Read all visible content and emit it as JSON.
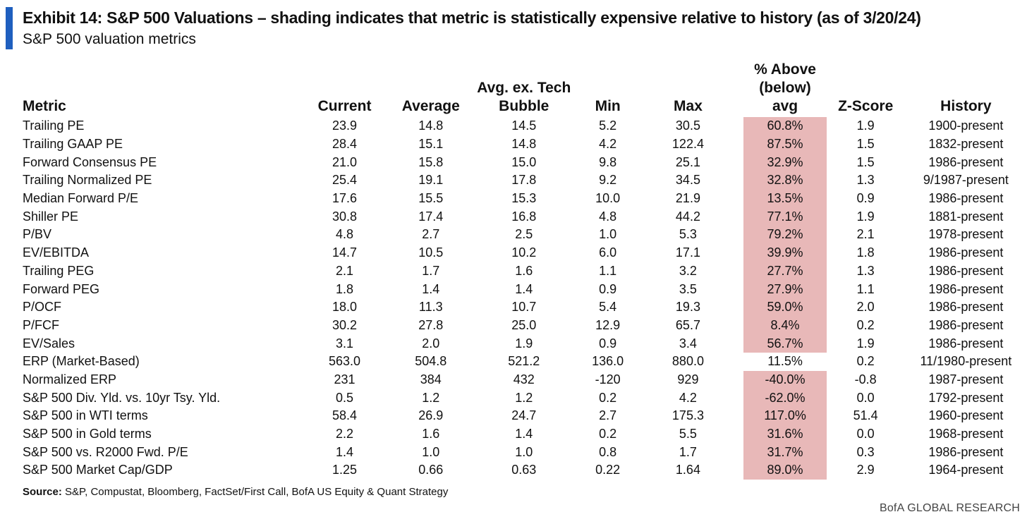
{
  "title": "Exhibit 14: S&P 500 Valuations – shading indicates that metric is statistically expensive relative to history (as of 3/20/24)",
  "subtitle": "S&P 500 valuation metrics",
  "accent_color": "#1f5fbf",
  "shade_color": "#e8b8b8",
  "headers": {
    "metric": "Metric",
    "current": "Current",
    "average": "Average",
    "avg_ex_tech_1": "Avg. ex. Tech",
    "avg_ex_tech_2": "Bubble",
    "min": "Min",
    "max": "Max",
    "pct_1": "% Above",
    "pct_2": "(below)",
    "pct_3": "avg",
    "zscore": "Z-Score",
    "history": "History"
  },
  "rows": [
    {
      "metric": "Trailing PE",
      "current": "23.9",
      "average": "14.8",
      "avg_ex_tech": "14.5",
      "min": "5.2",
      "max": "30.5",
      "pct": "60.8%",
      "z": "1.9",
      "history": "1900-present",
      "shaded": true
    },
    {
      "metric": "Trailing GAAP PE",
      "current": "28.4",
      "average": "15.1",
      "avg_ex_tech": "14.8",
      "min": "4.2",
      "max": "122.4",
      "pct": "87.5%",
      "z": "1.5",
      "history": "1832-present",
      "shaded": true
    },
    {
      "metric": "Forward Consensus PE",
      "current": "21.0",
      "average": "15.8",
      "avg_ex_tech": "15.0",
      "min": "9.8",
      "max": "25.1",
      "pct": "32.9%",
      "z": "1.5",
      "history": "1986-present",
      "shaded": true
    },
    {
      "metric": "Trailing Normalized PE",
      "current": "25.4",
      "average": "19.1",
      "avg_ex_tech": "17.8",
      "min": "9.2",
      "max": "34.5",
      "pct": "32.8%",
      "z": "1.3",
      "history": "9/1987-present",
      "shaded": true
    },
    {
      "metric": "Median Forward P/E",
      "current": "17.6",
      "average": "15.5",
      "avg_ex_tech": "15.3",
      "min": "10.0",
      "max": "21.9",
      "pct": "13.5%",
      "z": "0.9",
      "history": "1986-present",
      "shaded": true
    },
    {
      "metric": "Shiller PE",
      "current": "30.8",
      "average": "17.4",
      "avg_ex_tech": "16.8",
      "min": "4.8",
      "max": "44.2",
      "pct": "77.1%",
      "z": "1.9",
      "history": "1881-present",
      "shaded": true
    },
    {
      "metric": "P/BV",
      "current": "4.8",
      "average": "2.7",
      "avg_ex_tech": "2.5",
      "min": "1.0",
      "max": "5.3",
      "pct": "79.2%",
      "z": "2.1",
      "history": "1978-present",
      "shaded": true
    },
    {
      "metric": "EV/EBITDA",
      "current": "14.7",
      "average": "10.5",
      "avg_ex_tech": "10.2",
      "min": "6.0",
      "max": "17.1",
      "pct": "39.9%",
      "z": "1.8",
      "history": "1986-present",
      "shaded": true
    },
    {
      "metric": "Trailing PEG",
      "current": "2.1",
      "average": "1.7",
      "avg_ex_tech": "1.6",
      "min": "1.1",
      "max": "3.2",
      "pct": "27.7%",
      "z": "1.3",
      "history": "1986-present",
      "shaded": true
    },
    {
      "metric": "Forward PEG",
      "current": "1.8",
      "average": "1.4",
      "avg_ex_tech": "1.4",
      "min": "0.9",
      "max": "3.5",
      "pct": "27.9%",
      "z": "1.1",
      "history": "1986-present",
      "shaded": true
    },
    {
      "metric": "P/OCF",
      "current": "18.0",
      "average": "11.3",
      "avg_ex_tech": "10.7",
      "min": "5.4",
      "max": "19.3",
      "pct": "59.0%",
      "z": "2.0",
      "history": "1986-present",
      "shaded": true
    },
    {
      "metric": "P/FCF",
      "current": "30.2",
      "average": "27.8",
      "avg_ex_tech": "25.0",
      "min": "12.9",
      "max": "65.7",
      "pct": "8.4%",
      "z": "0.2",
      "history": "1986-present",
      "shaded": true
    },
    {
      "metric": "EV/Sales",
      "current": "3.1",
      "average": "2.0",
      "avg_ex_tech": "1.9",
      "min": "0.9",
      "max": "3.4",
      "pct": "56.7%",
      "z": "1.9",
      "history": "1986-present",
      "shaded": true
    },
    {
      "metric": "ERP (Market-Based)",
      "current": "563.0",
      "average": "504.8",
      "avg_ex_tech": "521.2",
      "min": "136.0",
      "max": "880.0",
      "pct": "11.5%",
      "z": "0.2",
      "history": "11/1980-present",
      "shaded": false
    },
    {
      "metric": "Normalized ERP",
      "current": "231",
      "average": "384",
      "avg_ex_tech": "432",
      "min": "-120",
      "max": "929",
      "pct": "-40.0%",
      "z": "-0.8",
      "history": "1987-present",
      "shaded": true
    },
    {
      "metric": "S&P 500 Div. Yld. vs. 10yr Tsy. Yld.",
      "current": "0.5",
      "average": "1.2",
      "avg_ex_tech": "1.2",
      "min": "0.2",
      "max": "4.2",
      "pct": "-62.0%",
      "z": "0.0",
      "history": "1792-present",
      "shaded": true
    },
    {
      "metric": "S&P 500 in WTI terms",
      "current": "58.4",
      "average": "26.9",
      "avg_ex_tech": "24.7",
      "min": "2.7",
      "max": "175.3",
      "pct": "117.0%",
      "z": "51.4",
      "history": "1960-present",
      "shaded": true
    },
    {
      "metric": "S&P 500 in Gold terms",
      "current": "2.2",
      "average": "1.6",
      "avg_ex_tech": "1.4",
      "min": "0.2",
      "max": "5.5",
      "pct": "31.6%",
      "z": "0.0",
      "history": "1968-present",
      "shaded": true
    },
    {
      "metric": "S&P 500 vs. R2000 Fwd. P/E",
      "current": "1.4",
      "average": "1.0",
      "avg_ex_tech": "1.0",
      "min": "0.8",
      "max": "1.7",
      "pct": "31.7%",
      "z": "0.3",
      "history": "1986-present",
      "shaded": true
    },
    {
      "metric": "S&P 500 Market Cap/GDP",
      "current": "1.25",
      "average": "0.66",
      "avg_ex_tech": "0.63",
      "min": "0.22",
      "max": "1.64",
      "pct": "89.0%",
      "z": "2.9",
      "history": "1964-present",
      "shaded": true
    }
  ],
  "source_label": "Source:",
  "source_text": " S&P, Compustat, Bloomberg, FactSet/First Call, BofA US Equity & Quant Strategy",
  "brand": "BofA GLOBAL RESEARCH"
}
